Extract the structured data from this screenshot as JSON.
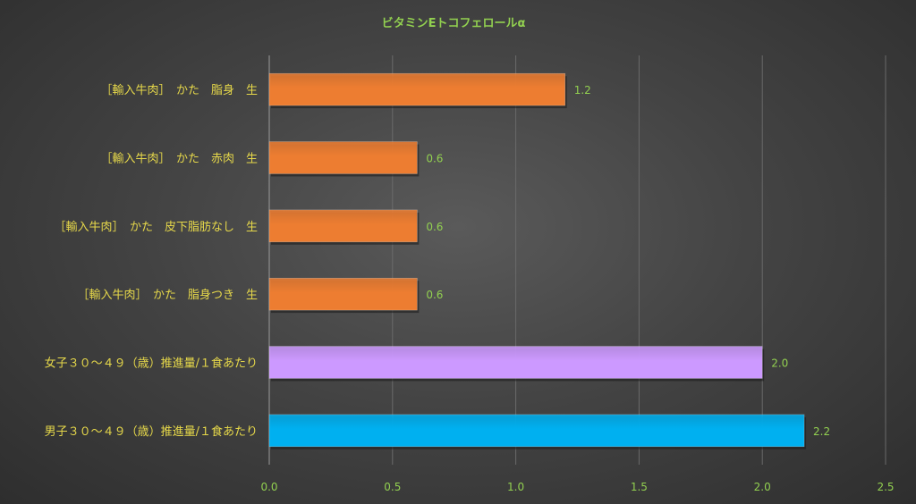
{
  "chart_data": {
    "type": "bar",
    "orientation": "horizontal",
    "title": "ビタミンEトコフェロールα",
    "categories": [
      "［輸入牛肉］　かた　脂身　生",
      "［輸入牛肉］　かた　赤肉　生",
      "［輸入牛肉］　かた　皮下脂肪なし　生",
      "［輸入牛肉］　かた　脂身つき　生",
      "女子３０～４９（歳）推進量/１食あたり",
      "男子３０～４９（歳）推進量/１食あたり"
    ],
    "values": [
      1.2,
      0.6,
      0.6,
      0.6,
      2.0,
      2.17
    ],
    "value_labels": [
      "1.2",
      "0.6",
      "0.6",
      "0.6",
      "2.0",
      "2.2"
    ],
    "bar_colors": [
      "#ed7d31",
      "#ed7d31",
      "#ed7d31",
      "#ed7d31",
      "#cc99ff",
      "#00b0f0"
    ],
    "xlim": [
      0,
      2.5
    ],
    "xticks": [
      0.0,
      0.5,
      1.0,
      1.5,
      2.0,
      2.5
    ],
    "xtick_labels": [
      "0.0",
      "0.5",
      "1.0",
      "1.5",
      "2.0",
      "2.5"
    ],
    "grid": true,
    "legend": "none",
    "colors": {
      "title": "#92d050",
      "category_labels": "#e6d84a",
      "value_labels": "#92d050",
      "tick_labels": "#92d050"
    }
  }
}
